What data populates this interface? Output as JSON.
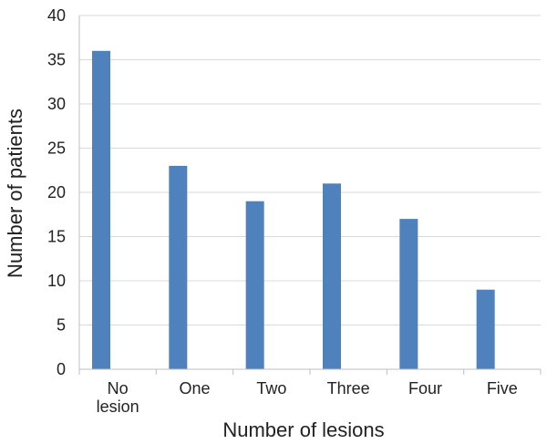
{
  "chart_data": {
    "type": "bar",
    "title": "",
    "xlabel": "Number of lesions",
    "ylabel": "Number of patients",
    "categories": [
      [
        "No",
        "lesion"
      ],
      [
        "One"
      ],
      [
        "Two"
      ],
      [
        "Three"
      ],
      [
        "Four"
      ],
      [
        "Five"
      ]
    ],
    "values": [
      36,
      23,
      19,
      21,
      17,
      9
    ],
    "ylim": [
      0,
      40
    ],
    "yticks": [
      0,
      5,
      10,
      15,
      20,
      25,
      30,
      35,
      40
    ],
    "grid": true,
    "legend": "none",
    "bar_color": "#4f81bd"
  }
}
